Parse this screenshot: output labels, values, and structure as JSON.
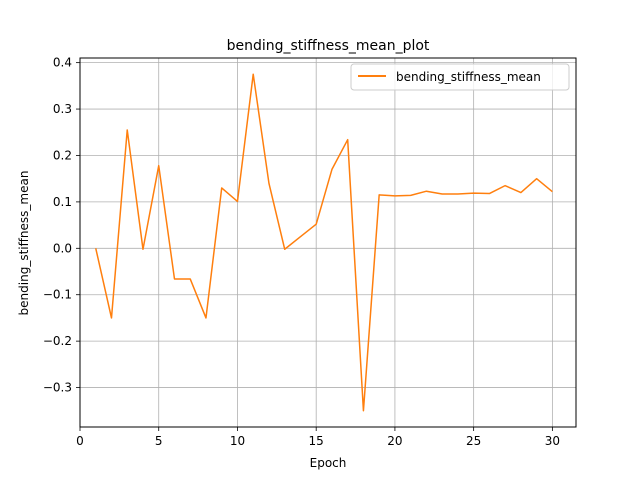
{
  "chart_data": {
    "type": "line",
    "title": "bending_stiffness_mean_plot",
    "xlabel": "Epoch",
    "ylabel": "bending_stiffness_mean",
    "xlim": [
      0.0,
      31.5
    ],
    "ylim": [
      -0.385,
      0.41
    ],
    "xticks": [
      0,
      5,
      10,
      15,
      20,
      25,
      30
    ],
    "xtick_labels": [
      "0",
      "5",
      "10",
      "15",
      "20",
      "25",
      "30"
    ],
    "yticks": [
      -0.3,
      -0.2,
      -0.1,
      0.0,
      0.1,
      0.2,
      0.3,
      0.4
    ],
    "ytick_labels": [
      "−0.3",
      "−0.2",
      "−0.1",
      "0.0",
      "0.1",
      "0.2",
      "0.3",
      "0.4"
    ],
    "grid": true,
    "legend_position": "top-right",
    "series": [
      {
        "name": "bending_stiffness_mean",
        "color": "#ff7f0e",
        "x": [
          1,
          2,
          3,
          4,
          5,
          6,
          7,
          8,
          9,
          10,
          11,
          12,
          13,
          14,
          15,
          16,
          17,
          18,
          19,
          20,
          21,
          22,
          23,
          24,
          25,
          26,
          27,
          28,
          29,
          30
        ],
        "y": [
          0.0,
          -0.15,
          0.255,
          -0.002,
          0.178,
          -0.066,
          -0.066,
          -0.15,
          0.13,
          0.101,
          0.375,
          0.14,
          -0.002,
          0.025,
          0.052,
          0.17,
          0.234,
          -0.35,
          0.115,
          0.113,
          0.114,
          0.123,
          0.117,
          0.117,
          0.119,
          0.118,
          0.135,
          0.12,
          0.15,
          0.122
        ]
      }
    ]
  }
}
